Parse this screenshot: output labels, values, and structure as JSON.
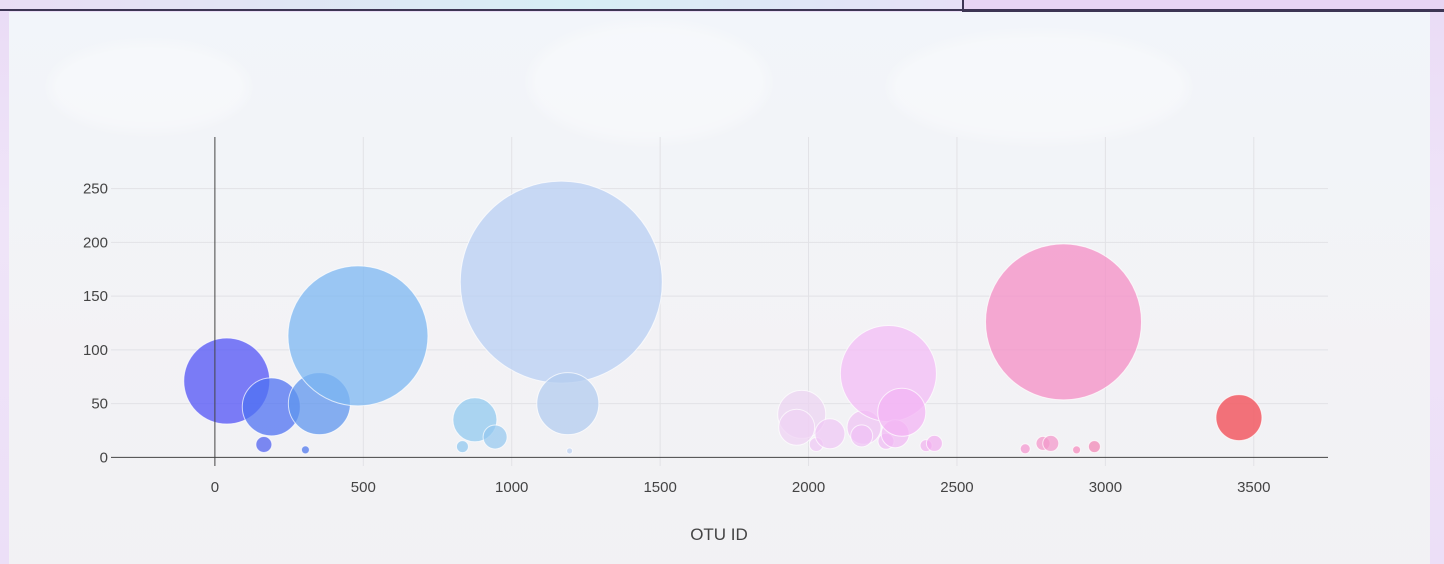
{
  "chart_data": {
    "type": "scatter",
    "subtype": "bubble",
    "xlabel": "OTU ID",
    "ylabel": "",
    "xlim": [
      -350,
      3750
    ],
    "ylim": [
      -8,
      298
    ],
    "x_ticks": [
      0,
      500,
      1000,
      1500,
      2000,
      2500,
      3000,
      3500
    ],
    "y_ticks": [
      0,
      50,
      100,
      150,
      200,
      250
    ],
    "grid": true,
    "points": [
      {
        "x": 40,
        "y": 71,
        "color": "#5b5cf6",
        "opacity": 0.8
      },
      {
        "x": 165,
        "y": 12,
        "color": "#5b6cf0",
        "opacity": 0.8
      },
      {
        "x": 190,
        "y": 47,
        "color": "#4f72f1",
        "opacity": 0.75
      },
      {
        "x": 305,
        "y": 7,
        "color": "#5a80ee",
        "opacity": 0.8
      },
      {
        "x": 352,
        "y": 50,
        "color": "#5f96ee",
        "opacity": 0.75
      },
      {
        "x": 482,
        "y": 113,
        "color": "#7cb7f2",
        "opacity": 0.75
      },
      {
        "x": 834,
        "y": 10,
        "color": "#8cc6f0",
        "opacity": 0.7
      },
      {
        "x": 876,
        "y": 35,
        "color": "#8cc8f0",
        "opacity": 0.7
      },
      {
        "x": 944,
        "y": 19,
        "color": "#93c8ef",
        "opacity": 0.7
      },
      {
        "x": 1167,
        "y": 163,
        "color": "#b8cff3",
        "opacity": 0.75
      },
      {
        "x": 1189,
        "y": 50,
        "color": "#b3ccef",
        "opacity": 0.75
      },
      {
        "x": 1195,
        "y": 6,
        "color": "#bcd2f2",
        "opacity": 0.7
      },
      {
        "x": 1977,
        "y": 40,
        "color": "#ecd4f2",
        "opacity": 0.75
      },
      {
        "x": 1960,
        "y": 28,
        "color": "#efd2f4",
        "opacity": 0.7
      },
      {
        "x": 2026,
        "y": 12,
        "color": "#f0c8f5",
        "opacity": 0.7
      },
      {
        "x": 2072,
        "y": 22,
        "color": "#efc6f5",
        "opacity": 0.7
      },
      {
        "x": 2187,
        "y": 28,
        "color": "#efc2f4",
        "opacity": 0.7
      },
      {
        "x": 2179,
        "y": 20,
        "color": "#f0c0f5",
        "opacity": 0.7
      },
      {
        "x": 2269,
        "y": 78,
        "color": "#f3bcf6",
        "opacity": 0.75
      },
      {
        "x": 2261,
        "y": 15,
        "color": "#efb9f3",
        "opacity": 0.7
      },
      {
        "x": 2292,
        "y": 22,
        "color": "#f1b6f4",
        "opacity": 0.7
      },
      {
        "x": 2314,
        "y": 42,
        "color": "#f3b4f4",
        "opacity": 0.75
      },
      {
        "x": 2396,
        "y": 11,
        "color": "#f2b0ef",
        "opacity": 0.7
      },
      {
        "x": 2424,
        "y": 13,
        "color": "#f2aeef",
        "opacity": 0.7
      },
      {
        "x": 2730,
        "y": 8,
        "color": "#f49ad0",
        "opacity": 0.75
      },
      {
        "x": 2790,
        "y": 13,
        "color": "#f49acb",
        "opacity": 0.75
      },
      {
        "x": 2816,
        "y": 13,
        "color": "#f39acb",
        "opacity": 0.75
      },
      {
        "x": 2859,
        "y": 126,
        "color": "#f494c8",
        "opacity": 0.8
      },
      {
        "x": 2903,
        "y": 7,
        "color": "#f58ebf",
        "opacity": 0.75
      },
      {
        "x": 2963,
        "y": 10,
        "color": "#f28ab7",
        "opacity": 0.75
      },
      {
        "x": 3450,
        "y": 37,
        "color": "#f25a63",
        "opacity": 0.85
      }
    ],
    "sizes": [
      43,
      8,
      29,
      4,
      31,
      70,
      6,
      22,
      12,
      101,
      31,
      3,
      24,
      18,
      7,
      15,
      17,
      11,
      48,
      8,
      14,
      24,
      6,
      8,
      5,
      7,
      8,
      78,
      4,
      6,
      23
    ]
  }
}
